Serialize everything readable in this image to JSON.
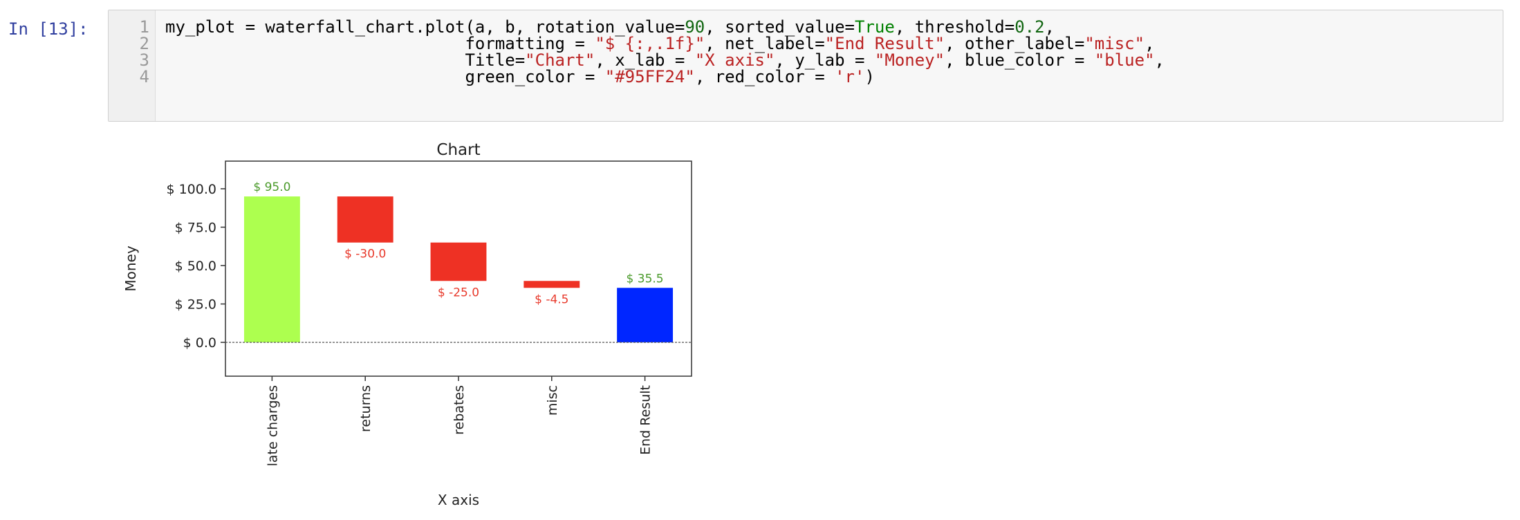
{
  "cell": {
    "prompt": "In [13]:",
    "line_numbers": [
      "1",
      "2",
      "3",
      "4"
    ],
    "code_lines": [
      [
        {
          "t": "my_plot = waterfall_chart.plot(a, b, rotation_value=",
          "c": ""
        },
        {
          "t": "90",
          "c": "num"
        },
        {
          "t": ", sorted_value=",
          "c": ""
        },
        {
          "t": "True",
          "c": "kw"
        },
        {
          "t": ", threshold=",
          "c": ""
        },
        {
          "t": "0.2",
          "c": "num"
        },
        {
          "t": ",",
          "c": ""
        }
      ],
      [
        {
          "t": "                              formatting = ",
          "c": ""
        },
        {
          "t": "\"$ {:,.1f}\"",
          "c": "str"
        },
        {
          "t": ", net_label=",
          "c": ""
        },
        {
          "t": "\"End Result\"",
          "c": "str"
        },
        {
          "t": ", other_label=",
          "c": ""
        },
        {
          "t": "\"misc\"",
          "c": "str"
        },
        {
          "t": ",",
          "c": ""
        }
      ],
      [
        {
          "t": "                              Title=",
          "c": ""
        },
        {
          "t": "\"Chart\"",
          "c": "str"
        },
        {
          "t": ", x_lab = ",
          "c": ""
        },
        {
          "t": "\"X axis\"",
          "c": "str"
        },
        {
          "t": ", y_lab = ",
          "c": ""
        },
        {
          "t": "\"Money\"",
          "c": "str"
        },
        {
          "t": ", blue_color = ",
          "c": ""
        },
        {
          "t": "\"blue\"",
          "c": "str"
        },
        {
          "t": ",",
          "c": ""
        }
      ],
      [
        {
          "t": "                              green_color = ",
          "c": ""
        },
        {
          "t": "\"#95FF24\"",
          "c": "str"
        },
        {
          "t": ", red_color = ",
          "c": ""
        },
        {
          "t": "'r'",
          "c": "str"
        },
        {
          "t": ")",
          "c": ""
        }
      ]
    ]
  },
  "chart_data": {
    "type": "bar",
    "title": "Chart",
    "xlabel": "X axis",
    "ylabel": "Money",
    "categories": [
      "late charges",
      "returns",
      "rebates",
      "misc",
      "End Result"
    ],
    "values": [
      95.0,
      -30.0,
      -25.0,
      -4.5,
      35.5
    ],
    "bar_labels": [
      "$ 95.0",
      "$ -30.0",
      "$ -25.0",
      "$ -4.5",
      "$ 35.5"
    ],
    "ylim": [
      -22,
      118
    ],
    "yticks": [
      0,
      25,
      50,
      75,
      100
    ],
    "ytick_labels": [
      "$ 0.0",
      "$ 25.0",
      "$ 50.0",
      "$ 75.0",
      "$ 100.0"
    ],
    "colors": {
      "positive": "#adff4f",
      "negative": "#ee3124",
      "net": "#0026ff",
      "positive_label": "#4a9a2a",
      "negative_label": "#e8392b",
      "zero_line": "#555555"
    },
    "xtick_rotation": 90
  }
}
